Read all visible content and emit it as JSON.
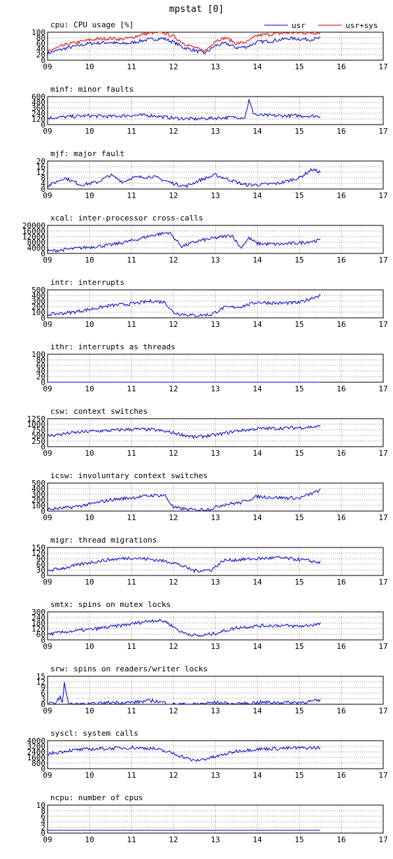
{
  "title": "mpstat [0]",
  "legend": {
    "usr": "usr",
    "usrsys": "usr+sys"
  },
  "colors": {
    "usr": "#0000cc",
    "usrsys": "#dd0000",
    "axis": "#000000",
    "grid": "#888888"
  },
  "chart_data": [
    {
      "id": "cpu",
      "type": "line",
      "title": "cpu: CPU usage [%]",
      "xlim": [
        9,
        17
      ],
      "ylim": [
        0,
        100
      ],
      "xticks": [
        9,
        10,
        11,
        12,
        13,
        14,
        15,
        16,
        17
      ],
      "yticks": [
        0,
        20,
        40,
        60,
        80,
        100
      ],
      "series": [
        {
          "name": "usr",
          "key": "usr",
          "x": [
            9,
            9.25,
            9.5,
            9.75,
            10,
            10.25,
            10.5,
            10.75,
            11,
            11.25,
            11.5,
            11.75,
            12,
            12.25,
            12.5,
            12.75,
            13,
            13.25,
            13.5,
            13.75,
            14,
            14.25,
            14.5,
            14.75,
            15,
            15.25,
            15.5
          ],
          "values": [
            25,
            35,
            45,
            52,
            60,
            62,
            64,
            58,
            62,
            70,
            75,
            78,
            65,
            45,
            35,
            25,
            52,
            60,
            45,
            48,
            65,
            68,
            72,
            78,
            76,
            74,
            78
          ]
        },
        {
          "name": "usr+sys",
          "key": "usrsys",
          "x": [
            9,
            9.25,
            9.5,
            9.75,
            10,
            10.25,
            10.5,
            10.75,
            11,
            11.25,
            11.5,
            11.75,
            12,
            12.25,
            12.5,
            12.75,
            13,
            13.25,
            13.5,
            13.75,
            14,
            14.25,
            14.5,
            14.75,
            15,
            15.25,
            15.5
          ],
          "values": [
            32,
            45,
            58,
            65,
            72,
            76,
            78,
            75,
            80,
            92,
            98,
            99,
            85,
            60,
            45,
            32,
            70,
            80,
            60,
            65,
            88,
            92,
            95,
            98,
            98,
            97,
            99
          ]
        }
      ]
    },
    {
      "id": "minf",
      "type": "line",
      "title": "minf: minor faults",
      "xlim": [
        9,
        17
      ],
      "ylim": [
        0,
        600
      ],
      "xticks": [
        9,
        10,
        11,
        12,
        13,
        14,
        15,
        16,
        17
      ],
      "yticks": [
        0,
        120,
        240,
        360,
        480,
        600
      ],
      "series": [
        {
          "name": "",
          "key": "usr",
          "x": [
            9,
            9.5,
            10,
            10.5,
            11,
            11.5,
            12,
            12.5,
            13,
            13.5,
            13.7,
            13.8,
            13.9,
            14,
            14.5,
            15,
            15.5
          ],
          "values": [
            140,
            170,
            190,
            175,
            200,
            195,
            140,
            120,
            140,
            160,
            150,
            520,
            260,
            200,
            190,
            190,
            180
          ]
        }
      ]
    },
    {
      "id": "mjf",
      "type": "line",
      "title": "mjf: major fault",
      "xlim": [
        9,
        17
      ],
      "ylim": [
        0,
        20
      ],
      "xticks": [
        9,
        10,
        11,
        12,
        13,
        14,
        15,
        16,
        17
      ],
      "yticks": [
        0,
        4,
        8,
        12,
        16,
        20
      ],
      "series": [
        {
          "name": "",
          "key": "usr",
          "x": [
            9,
            9.4,
            9.8,
            10.2,
            10.5,
            10.8,
            11,
            11.5,
            12,
            12.3,
            12.6,
            13,
            13.3,
            13.7,
            14,
            14.5,
            15,
            15.3,
            15.5
          ],
          "values": [
            2,
            8,
            3,
            5,
            10,
            5,
            8,
            9,
            4,
            2,
            6,
            10,
            7,
            3,
            3,
            4,
            8,
            14,
            12
          ]
        }
      ]
    },
    {
      "id": "xcal",
      "type": "line",
      "title": "xcal: inter-processor cross-calls",
      "xlim": [
        9,
        17
      ],
      "ylim": [
        0,
        20000
      ],
      "xticks": [
        9,
        10,
        11,
        12,
        13,
        14,
        15,
        16,
        17
      ],
      "yticks": [
        0,
        4000,
        8000,
        12000,
        16000,
        20000
      ],
      "series": [
        {
          "name": "",
          "key": "usr",
          "x": [
            9,
            9.5,
            10,
            10.5,
            11,
            11.5,
            11.9,
            12.2,
            12.6,
            13,
            13.4,
            13.6,
            13.8,
            14,
            14.5,
            15,
            15.5
          ],
          "values": [
            1500,
            3000,
            4500,
            6000,
            9000,
            13000,
            15000,
            5000,
            9000,
            11000,
            13000,
            4000,
            11000,
            7000,
            6500,
            7500,
            9500
          ]
        }
      ]
    },
    {
      "id": "intr",
      "type": "line",
      "title": "intr: interrupts",
      "xlim": [
        9,
        17
      ],
      "ylim": [
        0,
        500
      ],
      "xticks": [
        9,
        10,
        11,
        12,
        13,
        14,
        15,
        16,
        17
      ],
      "yticks": [
        0,
        100,
        200,
        300,
        400,
        500
      ],
      "series": [
        {
          "name": "",
          "key": "usr",
          "x": [
            9,
            9.5,
            10,
            10.5,
            11,
            11.5,
            11.8,
            12,
            12.5,
            12.9,
            13.2,
            13.6,
            14,
            14.5,
            15,
            15.5
          ],
          "values": [
            60,
            90,
            150,
            220,
            250,
            300,
            280,
            90,
            40,
            60,
            180,
            200,
            280,
            260,
            270,
            410
          ]
        }
      ]
    },
    {
      "id": "ithr",
      "type": "line",
      "title": "ithr: interrupts as threads",
      "xlim": [
        9,
        17
      ],
      "ylim": [
        0,
        100
      ],
      "xticks": [
        9,
        10,
        11,
        12,
        13,
        14,
        15,
        16,
        17
      ],
      "yticks": [
        0,
        20,
        40,
        60,
        80,
        100
      ],
      "series": [
        {
          "name": "",
          "key": "usr",
          "x": [
            9,
            15.5
          ],
          "values": [
            0,
            0
          ]
        }
      ]
    },
    {
      "id": "csw",
      "type": "line",
      "title": "csw: context switches",
      "xlim": [
        9,
        17
      ],
      "ylim": [
        0,
        1250
      ],
      "xticks": [
        9,
        10,
        11,
        12,
        13,
        14,
        15,
        16,
        17
      ],
      "yticks": [
        0,
        250,
        500,
        750,
        1000,
        1250
      ],
      "series": [
        {
          "name": "",
          "key": "usr",
          "x": [
            9,
            9.5,
            10,
            10.5,
            11,
            11.5,
            12,
            12.5,
            13,
            13.5,
            14,
            14.5,
            15,
            15.5
          ],
          "values": [
            480,
            600,
            680,
            720,
            780,
            760,
            620,
            420,
            520,
            700,
            800,
            820,
            850,
            900
          ]
        }
      ]
    },
    {
      "id": "icsw",
      "type": "line",
      "title": "icsw: involuntary context switches",
      "xlim": [
        9,
        17
      ],
      "ylim": [
        0,
        500
      ],
      "xticks": [
        9,
        10,
        11,
        12,
        13,
        14,
        15,
        16,
        17
      ],
      "yticks": [
        0,
        100,
        200,
        300,
        400,
        500
      ],
      "series": [
        {
          "name": "",
          "key": "usr",
          "x": [
            9,
            9.5,
            10,
            10.5,
            11,
            11.5,
            11.8,
            12,
            12.5,
            12.9,
            13.2,
            13.6,
            14,
            14.5,
            15,
            15.5
          ],
          "values": [
            30,
            60,
            120,
            200,
            240,
            280,
            280,
            60,
            20,
            40,
            120,
            150,
            260,
            240,
            230,
            370
          ]
        }
      ]
    },
    {
      "id": "migr",
      "type": "line",
      "title": "migr: thread migrations",
      "xlim": [
        9,
        17
      ],
      "ylim": [
        0,
        150
      ],
      "xticks": [
        9,
        10,
        11,
        12,
        13,
        14,
        15,
        16,
        17
      ],
      "yticks": [
        0,
        30,
        60,
        90,
        120,
        150
      ],
      "series": [
        {
          "name": "",
          "key": "usr",
          "x": [
            9,
            9.5,
            10,
            10.5,
            11,
            11.5,
            12,
            12.5,
            12.9,
            13.2,
            13.6,
            14,
            14.5,
            15,
            15.5
          ],
          "values": [
            25,
            45,
            70,
            85,
            95,
            85,
            70,
            25,
            30,
            80,
            85,
            90,
            95,
            85,
            70
          ]
        }
      ]
    },
    {
      "id": "smtx",
      "type": "line",
      "title": "smtx: spins on mutex locks",
      "xlim": [
        9,
        17
      ],
      "ylim": [
        0,
        300
      ],
      "xticks": [
        9,
        10,
        11,
        12,
        13,
        14,
        15,
        16,
        17
      ],
      "yticks": [
        0,
        60,
        120,
        180,
        240,
        300
      ],
      "series": [
        {
          "name": "",
          "key": "usr",
          "x": [
            9,
            9.5,
            10,
            10.5,
            11,
            11.5,
            11.8,
            12.2,
            12.6,
            13,
            13.5,
            14,
            14.5,
            15,
            15.5
          ],
          "values": [
            60,
            90,
            110,
            140,
            170,
            210,
            200,
            80,
            40,
            70,
            130,
            150,
            155,
            145,
            170
          ]
        }
      ]
    },
    {
      "id": "srw",
      "type": "line",
      "title": "srw: spins on readers/writer locks",
      "xlim": [
        9,
        17
      ],
      "ylim": [
        0,
        15
      ],
      "xticks": [
        9,
        10,
        11,
        12,
        13,
        14,
        15,
        16,
        17
      ],
      "yticks": [
        0,
        3,
        6,
        9,
        12,
        15
      ],
      "series": [
        {
          "name": "",
          "key": "usr",
          "x": [
            9,
            9.2,
            9.3,
            9.35,
            9.4,
            9.5,
            10,
            10.5,
            11,
            11.5,
            12,
            12.5,
            13,
            13.5,
            14,
            14.5,
            15,
            15.5
          ],
          "values": [
            0,
            1,
            4,
            0,
            12,
            0,
            0,
            1,
            1,
            2,
            0,
            0,
            1,
            0,
            1,
            1,
            1,
            2
          ]
        }
      ]
    },
    {
      "id": "syscl",
      "type": "line",
      "title": "syscl: system calls",
      "xlim": [
        9,
        17
      ],
      "ylim": [
        0,
        4000
      ],
      "xticks": [
        9,
        10,
        11,
        12,
        13,
        14,
        15,
        16,
        17
      ],
      "yticks": [
        0,
        800,
        1600,
        2400,
        3200,
        4000
      ],
      "series": [
        {
          "name": "",
          "key": "usr",
          "x": [
            9,
            9.5,
            10,
            10.5,
            11,
            11.5,
            12,
            12.5,
            13,
            13.5,
            14,
            14.5,
            15,
            15.5
          ],
          "values": [
            2100,
            2600,
            2800,
            2900,
            3000,
            2900,
            2200,
            1100,
            1700,
            2500,
            2800,
            2900,
            2950,
            3000
          ]
        }
      ]
    },
    {
      "id": "ncpu",
      "type": "line",
      "title": "ncpu: number of cpus",
      "xlim": [
        9,
        17
      ],
      "ylim": [
        0,
        10
      ],
      "xticks": [
        9,
        10,
        11,
        12,
        13,
        14,
        15,
        16,
        17
      ],
      "yticks": [
        0,
        2,
        4,
        6,
        8,
        10
      ],
      "series": [
        {
          "name": "",
          "key": "usr",
          "x": [
            9,
            15.5
          ],
          "values": [
            1,
            1
          ]
        }
      ]
    }
  ]
}
